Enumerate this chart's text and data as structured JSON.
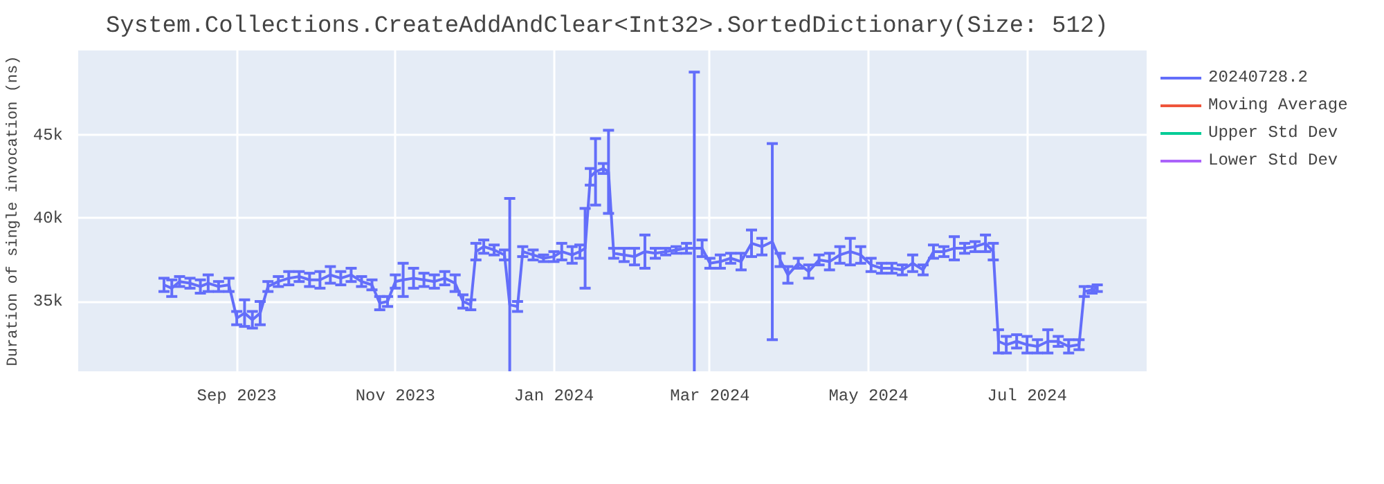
{
  "chart_data": {
    "type": "line",
    "title": "System.Collections.CreateAddAndClear<Int32>.SortedDictionary(Size: 512)",
    "ylabel": "Duration of single invocation (ns)",
    "x": [
      "2023-08-04",
      "2023-08-07",
      "2023-08-10",
      "2023-08-14",
      "2023-08-18",
      "2023-08-21",
      "2023-08-25",
      "2023-08-29",
      "2023-09-01",
      "2023-09-04",
      "2023-09-07",
      "2023-09-10",
      "2023-09-13",
      "2023-09-17",
      "2023-09-21",
      "2023-09-25",
      "2023-09-29",
      "2023-10-03",
      "2023-10-07",
      "2023-10-11",
      "2023-10-15",
      "2023-10-19",
      "2023-10-23",
      "2023-10-26",
      "2023-10-29",
      "2023-11-01",
      "2023-11-04",
      "2023-11-08",
      "2023-11-12",
      "2023-11-16",
      "2023-11-20",
      "2023-11-24",
      "2023-11-27",
      "2023-11-30",
      "2023-12-02",
      "2023-12-05",
      "2023-12-09",
      "2023-12-13",
      "2023-12-15",
      "2023-12-18",
      "2023-12-20",
      "2023-12-24",
      "2023-12-28",
      "2024-01-01",
      "2024-01-04",
      "2024-01-08",
      "2024-01-11",
      "2024-01-13",
      "2024-01-15",
      "2024-01-17",
      "2024-01-20",
      "2024-01-22",
      "2024-01-24",
      "2024-01-28",
      "2024-02-01",
      "2024-02-05",
      "2024-02-09",
      "2024-02-13",
      "2024-02-17",
      "2024-02-21",
      "2024-02-24",
      "2024-02-27",
      "2024-03-01",
      "2024-03-05",
      "2024-03-09",
      "2024-03-13",
      "2024-03-17",
      "2024-03-21",
      "2024-03-25",
      "2024-03-28",
      "2024-03-31",
      "2024-04-04",
      "2024-04-08",
      "2024-04-12",
      "2024-04-16",
      "2024-04-20",
      "2024-04-24",
      "2024-04-28",
      "2024-05-02",
      "2024-05-06",
      "2024-05-10",
      "2024-05-14",
      "2024-05-18",
      "2024-05-22",
      "2024-05-26",
      "2024-05-30",
      "2024-06-03",
      "2024-06-07",
      "2024-06-11",
      "2024-06-15",
      "2024-06-18",
      "2024-06-20",
      "2024-06-23",
      "2024-06-27",
      "2024-07-01",
      "2024-07-05",
      "2024-07-09",
      "2024-07-13",
      "2024-07-17",
      "2024-07-21",
      "2024-07-23",
      "2024-07-26",
      "2024-07-28"
    ],
    "series": [
      {
        "name": "20240728.2",
        "color": "#636efa",
        "values": [
          36000,
          35800,
          36200,
          36100,
          35900,
          36100,
          35900,
          36000,
          34000,
          34300,
          33900,
          34300,
          35900,
          36200,
          36400,
          36500,
          36300,
          36300,
          36600,
          36400,
          36600,
          36200,
          36000,
          34900,
          35000,
          36200,
          36300,
          36400,
          36300,
          36200,
          36400,
          36100,
          35000,
          34800,
          38000,
          38300,
          38100,
          37800,
          34800,
          34700,
          38000,
          37800,
          37600,
          37700,
          38000,
          37800,
          38000,
          38200,
          42500,
          42800,
          43000,
          42800,
          37900,
          37800,
          37700,
          38000,
          37900,
          38000,
          38100,
          38200,
          38200,
          38200,
          37300,
          37400,
          37600,
          37400,
          38500,
          38300,
          38600,
          37500,
          36600,
          37300,
          36800,
          37500,
          37400,
          37800,
          38000,
          37800,
          37200,
          37000,
          37000,
          36900,
          37300,
          36900,
          38000,
          38000,
          38200,
          38200,
          38300,
          38500,
          38000,
          32600,
          32400,
          32600,
          32400,
          32300,
          32600,
          32600,
          32300,
          32400,
          35600,
          35700,
          35800
        ],
        "errors": [
          400,
          500,
          300,
          300,
          400,
          500,
          300,
          400,
          400,
          800,
          500,
          700,
          300,
          300,
          400,
          300,
          400,
          500,
          500,
          400,
          400,
          300,
          300,
          400,
          300,
          400,
          1000,
          600,
          400,
          400,
          400,
          500,
          400,
          300,
          500,
          400,
          300,
          300,
          6400,
          300,
          300,
          300,
          200,
          300,
          500,
          500,
          400,
          2400,
          500,
          2000,
          300,
          2500,
          300,
          400,
          500,
          1000,
          300,
          200,
          200,
          300,
          10600,
          500,
          300,
          400,
          300,
          500,
          800,
          500,
          5900,
          400,
          500,
          300,
          400,
          300,
          500,
          500,
          800,
          500,
          400,
          300,
          300,
          300,
          500,
          300,
          400,
          300,
          700,
          300,
          300,
          500,
          500,
          700,
          500,
          400,
          500,
          400,
          700,
          300,
          400,
          300,
          300,
          200,
          200
        ]
      },
      {
        "name": "Moving Average",
        "color": "#ef553b",
        "values": [
          null,
          null,
          null,
          null,
          null,
          null,
          null,
          null,
          null,
          null,
          null,
          null,
          null,
          null,
          null,
          null,
          null,
          null,
          null,
          null,
          null,
          null,
          null,
          null,
          null,
          null,
          null,
          null,
          null,
          null,
          null,
          null,
          null,
          null,
          null,
          null,
          null,
          null,
          null,
          null,
          null,
          null,
          null,
          null,
          null,
          null,
          null,
          null,
          null,
          null,
          null,
          null,
          null,
          null,
          null,
          null,
          null,
          null,
          null,
          null,
          null,
          null,
          null,
          null,
          null,
          null,
          null,
          null,
          null,
          null,
          null,
          null,
          null,
          null,
          null,
          null,
          null,
          null,
          null,
          null,
          null,
          null,
          null,
          null,
          null,
          null,
          null,
          null,
          null,
          null,
          null,
          null,
          null,
          null,
          null,
          null,
          null,
          null,
          null,
          null,
          null,
          null,
          null
        ]
      },
      {
        "name": "Upper Std Dev",
        "color": "#00cc96",
        "values": [
          null,
          null,
          null,
          null,
          null,
          null,
          null,
          null,
          null,
          null,
          null,
          null,
          null,
          null,
          null,
          null,
          null,
          null,
          null,
          null,
          null,
          null,
          null,
          null,
          null,
          null,
          null,
          null,
          null,
          null,
          null,
          null,
          null,
          null,
          null,
          null,
          null,
          null,
          null,
          null,
          null,
          null,
          null,
          null,
          null,
          null,
          null,
          null,
          null,
          null,
          null,
          null,
          null,
          null,
          null,
          null,
          null,
          null,
          null,
          null,
          null,
          null,
          null,
          null,
          null,
          null,
          null,
          null,
          null,
          null,
          null,
          null,
          null,
          null,
          null,
          null,
          null,
          null,
          null,
          null,
          null,
          null,
          null,
          null,
          null,
          null,
          null,
          null,
          null,
          null,
          null,
          null,
          null,
          null,
          null,
          null,
          null,
          null,
          null,
          null,
          null,
          null,
          null
        ]
      },
      {
        "name": "Lower Std Dev",
        "color": "#ab63fa",
        "values": [
          null,
          null,
          null,
          null,
          null,
          null,
          null,
          null,
          null,
          null,
          null,
          null,
          null,
          null,
          null,
          null,
          null,
          null,
          null,
          null,
          null,
          null,
          null,
          null,
          null,
          null,
          null,
          null,
          null,
          null,
          null,
          null,
          null,
          null,
          null,
          null,
          null,
          null,
          null,
          null,
          null,
          null,
          null,
          null,
          null,
          null,
          null,
          null,
          null,
          null,
          null,
          null,
          null,
          null,
          null,
          null,
          null,
          null,
          null,
          null,
          null,
          null,
          null,
          null,
          null,
          null,
          null,
          null,
          null,
          null,
          null,
          null,
          null,
          null,
          null,
          null,
          null,
          null,
          null,
          null,
          null,
          null,
          null,
          null,
          null,
          null,
          null,
          null,
          null,
          null,
          null,
          null,
          null,
          null,
          null,
          null,
          null,
          null,
          null,
          null,
          null,
          null,
          null
        ]
      }
    ],
    "xlim": [
      "2023-07-02",
      "2024-08-16"
    ],
    "xticks": [
      {
        "value": "2023-09-01",
        "label": "Sep 2023"
      },
      {
        "value": "2023-11-01",
        "label": "Nov 2023"
      },
      {
        "value": "2024-01-01",
        "label": "Jan 2024"
      },
      {
        "value": "2024-03-01",
        "label": "Mar 2024"
      },
      {
        "value": "2024-05-01",
        "label": "May 2024"
      },
      {
        "value": "2024-07-01",
        "label": "Jul 2024"
      }
    ],
    "ylim": [
      30800,
      50100
    ],
    "yticks": [
      {
        "value": 35000,
        "label": "35k"
      },
      {
        "value": 40000,
        "label": "40k"
      },
      {
        "value": 45000,
        "label": "45k"
      }
    ],
    "grid": true,
    "legend": "top right",
    "line_style": "solid"
  }
}
